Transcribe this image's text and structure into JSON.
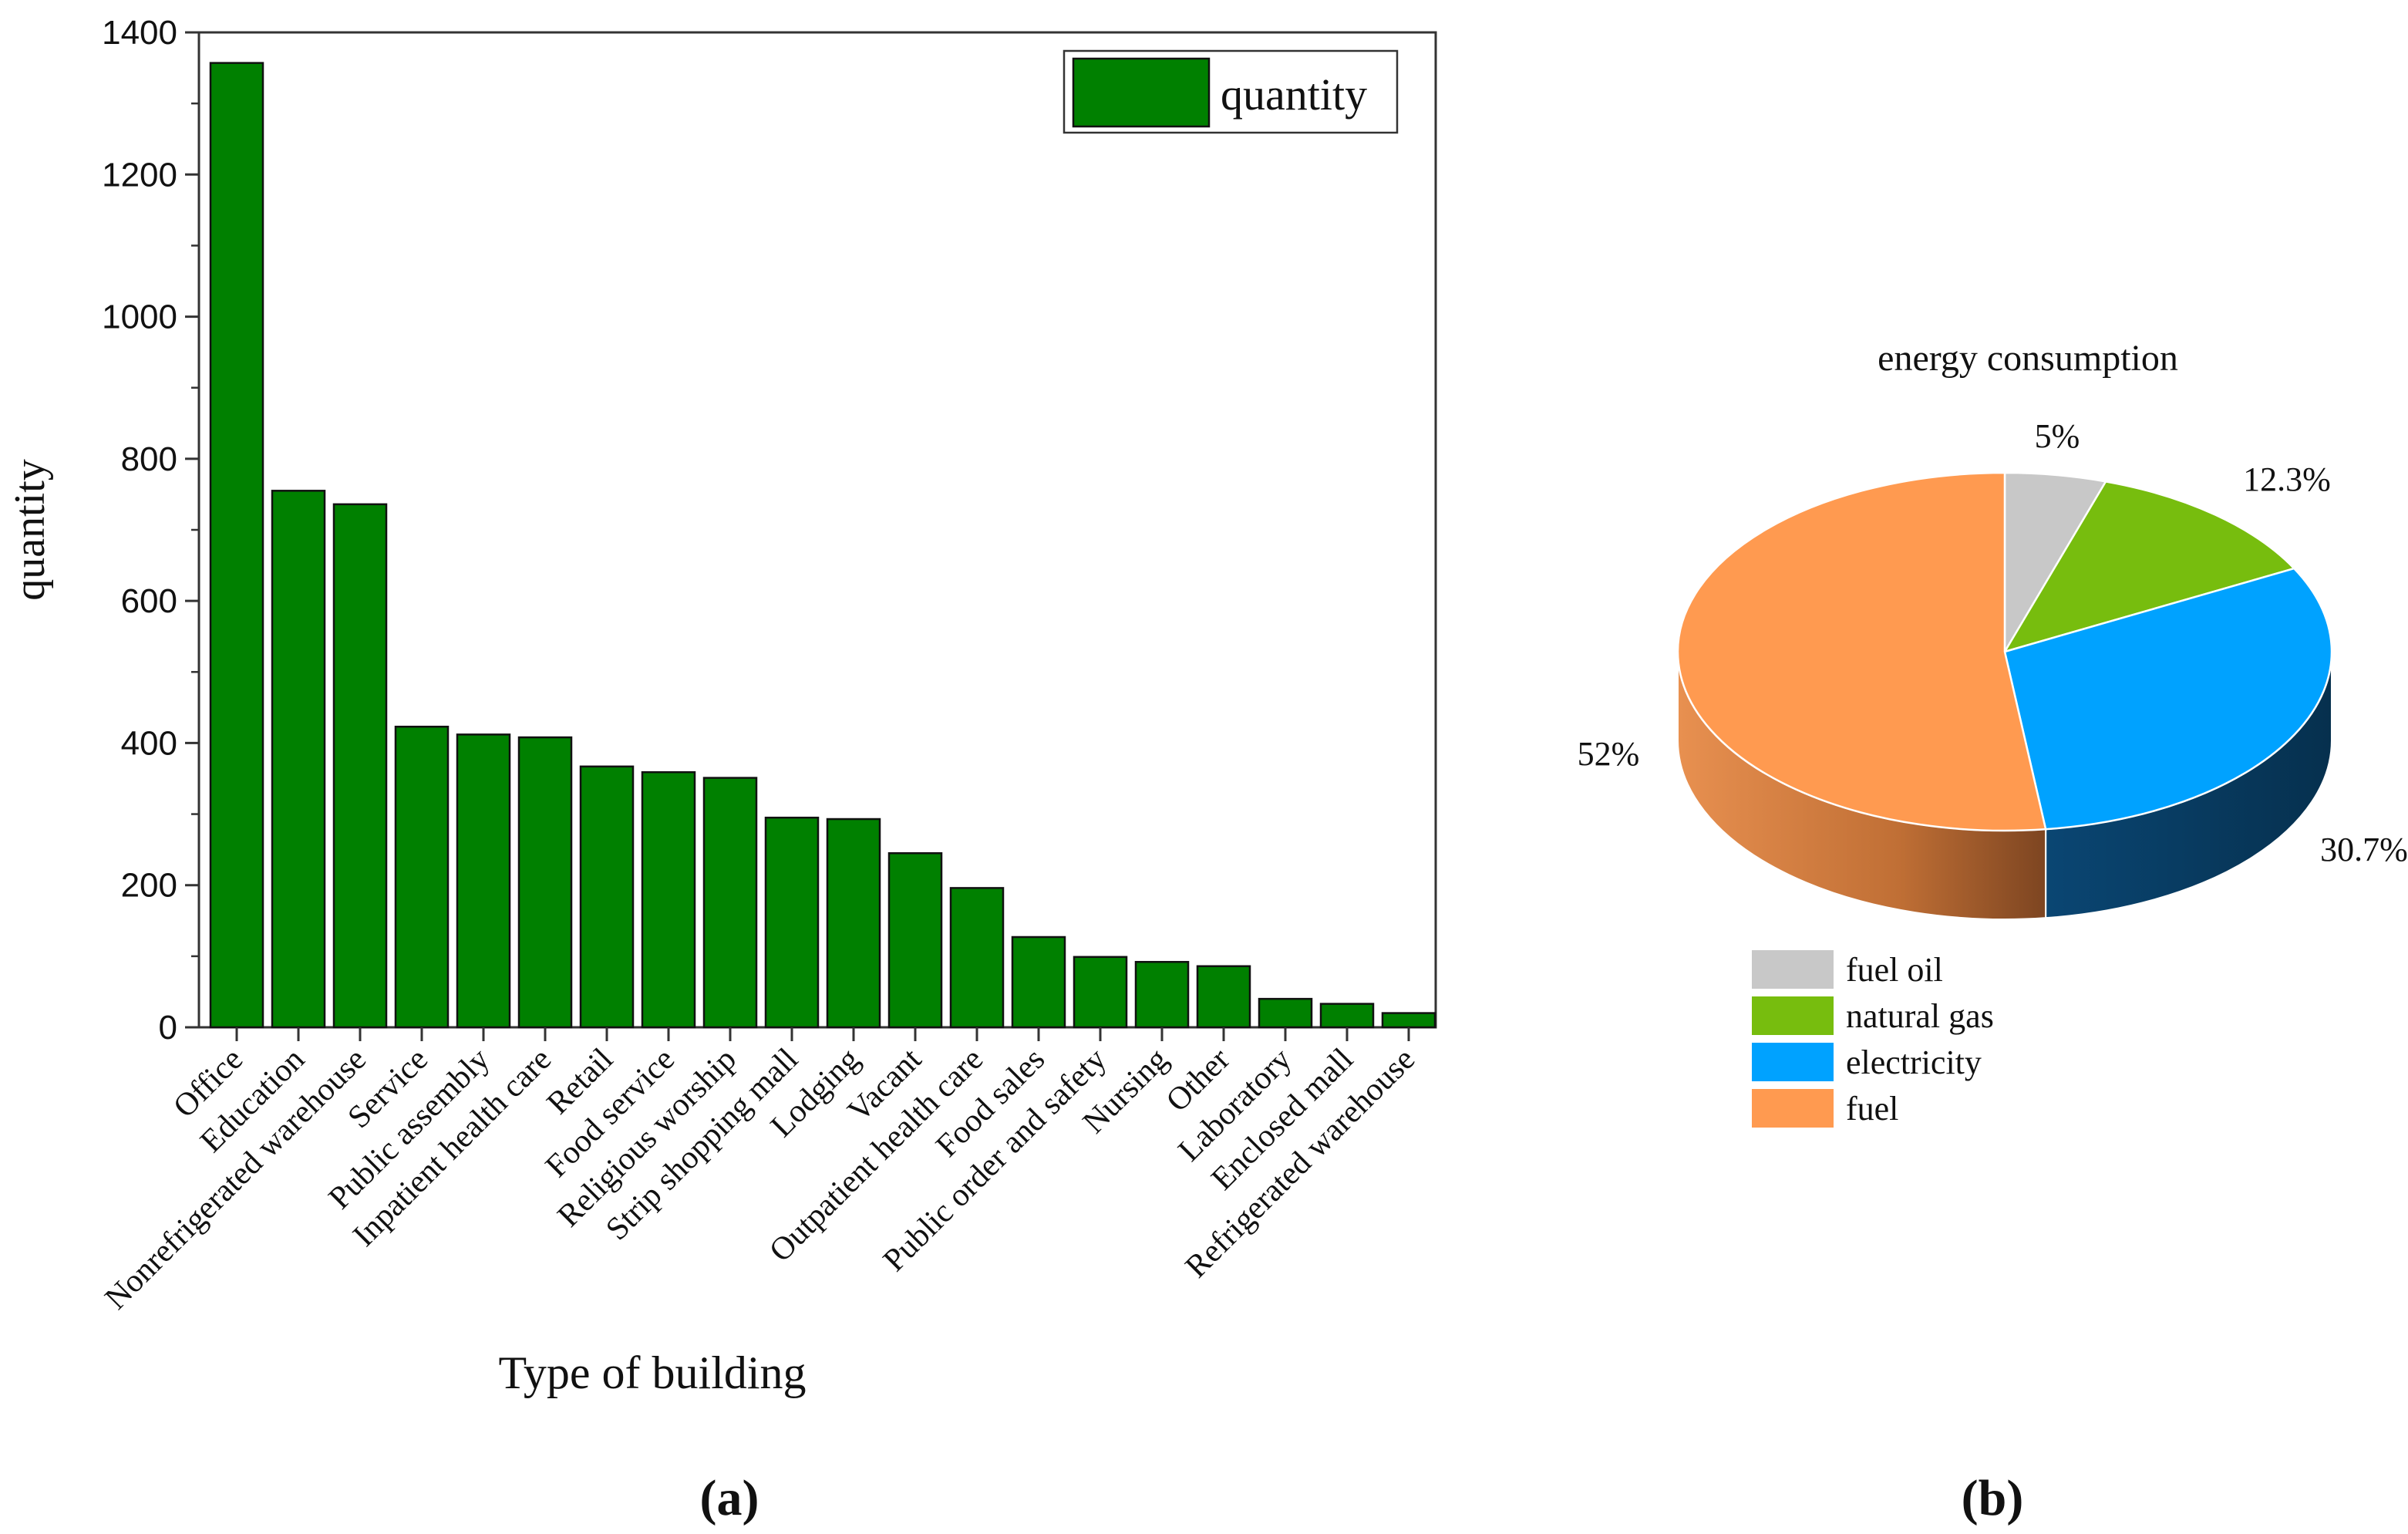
{
  "chart_data": [
    {
      "type": "bar",
      "panel_label": "(a)",
      "title": "",
      "xlabel": "Type of building",
      "ylabel": "quantity",
      "ylim": [
        0,
        1400
      ],
      "yticks": [
        "0",
        "200",
        "400",
        "600",
        "800",
        "1000",
        "1200",
        "1400"
      ],
      "legend": {
        "label": "quantity",
        "position": "top-right"
      },
      "bar_color": "#008000",
      "categories": [
        "Office",
        "Education",
        "Nonrefrigerated warehouse",
        "Service",
        "Public assembly",
        "Inpatient health care",
        "Retail",
        "Food service",
        "Religious worship",
        "Strip shopping mall",
        "Lodging",
        "Vacant",
        "Outpatient health care",
        "Food sales",
        "Public order and safety",
        "Nursing",
        "Other",
        "Laboratory",
        "Enclosed mall",
        "Refrigerated warehouse"
      ],
      "values": [
        1357,
        755,
        736,
        423,
        412,
        408,
        367,
        359,
        351,
        295,
        293,
        245,
        196,
        127,
        99,
        92,
        86,
        40,
        33,
        20
      ]
    },
    {
      "type": "pie",
      "panel_label": "(b)",
      "title": "energy consumption",
      "legend": {
        "position": "bottom-left"
      },
      "slices": [
        {
          "name": "fuel oil",
          "label": "5%",
          "value": 5.0,
          "color": "#c8c8c8",
          "side_color": "#8a8a8a"
        },
        {
          "name": "natural gas",
          "label": "12.3%",
          "value": 12.3,
          "color": "#77bd0e",
          "side_color": "#4a7a08"
        },
        {
          "name": "electricity",
          "label": "30.7%",
          "value": 30.7,
          "color": "#00a2ff",
          "side_color": "#0a3f66"
        },
        {
          "name": "fuel",
          "label": "52%",
          "value": 52.0,
          "color": "#ff9a50",
          "side_color": "#b86a30"
        }
      ]
    }
  ]
}
